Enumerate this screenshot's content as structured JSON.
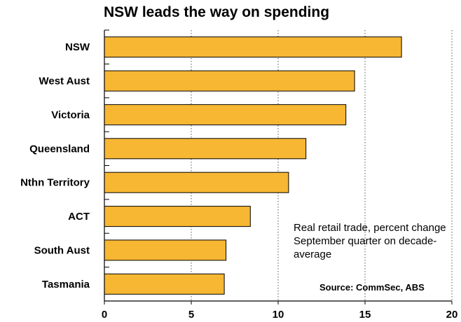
{
  "chart_data": {
    "type": "bar",
    "orientation": "horizontal",
    "title": "NSW leads the way on spending",
    "categories": [
      "NSW",
      "West Aust",
      "Victoria",
      "Queensland",
      "Nthn Territory",
      "ACT",
      "South Aust",
      "Tasmania"
    ],
    "values": [
      17.1,
      14.4,
      13.9,
      11.6,
      10.6,
      8.4,
      7.0,
      6.9
    ],
    "xlim": [
      0,
      20
    ],
    "xticks": [
      "0",
      "5",
      "10",
      "15",
      "20"
    ],
    "xlabel": "",
    "ylabel": "",
    "grid": "vertical dotted",
    "annotation": "Real retail trade, percent change September quarter on decade-average",
    "source": "Source: CommSec, ABS",
    "colors": {
      "bar": "#f7b733",
      "bar_edge": "#000000",
      "grid": "#555555"
    }
  }
}
